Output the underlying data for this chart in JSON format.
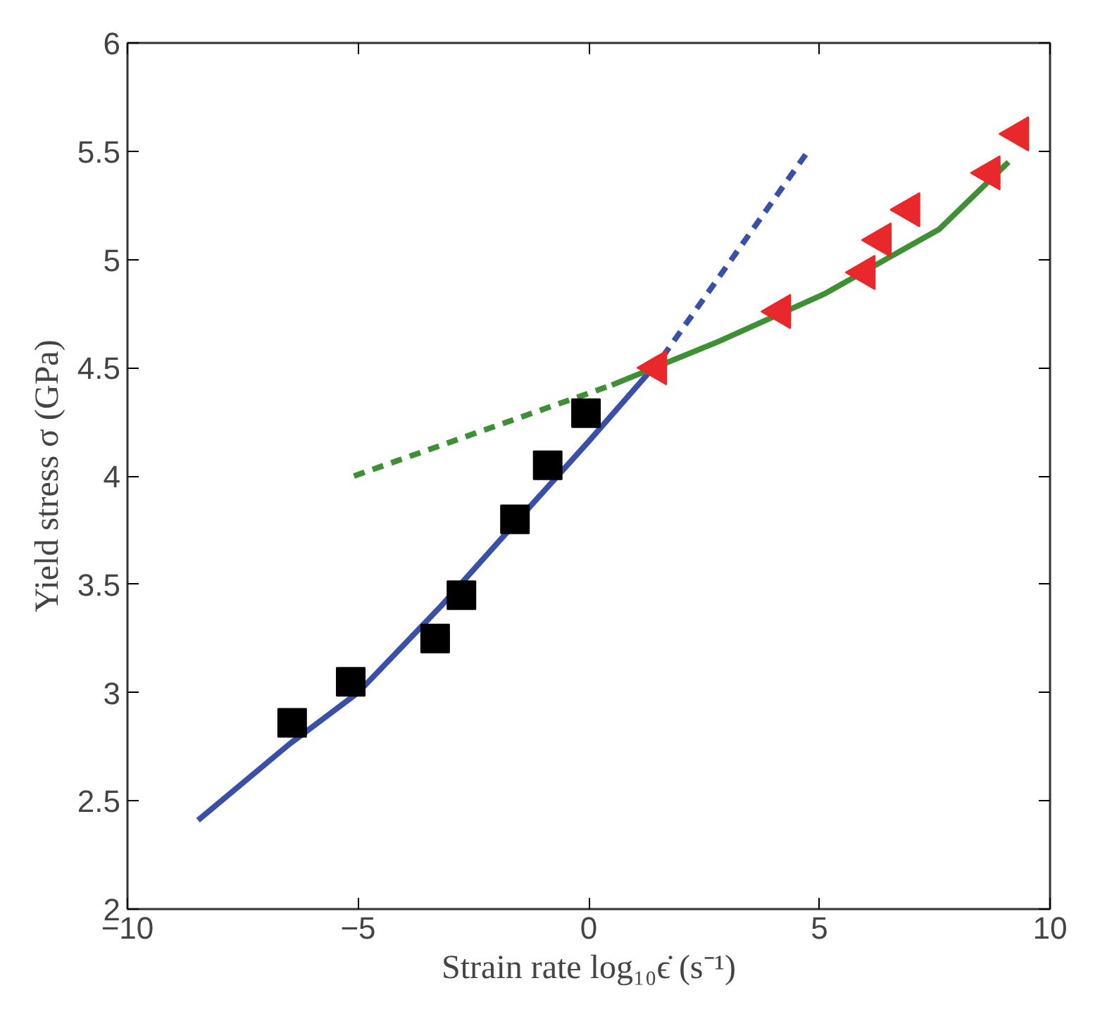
{
  "chart_data": {
    "type": "scatter",
    "xlabel": "Strain rate log₁₀ϵ̇ (s⁻¹)",
    "ylabel": "Yield stress σ (GPa)",
    "xlim": [
      -10,
      10
    ],
    "ylim": [
      2,
      6
    ],
    "xticks": [
      -10,
      -5,
      0,
      5,
      10
    ],
    "yticks": [
      2,
      2.5,
      3,
      3.5,
      4,
      4.5,
      5,
      5.5,
      6
    ],
    "grid": false,
    "series": [
      {
        "type": "line",
        "color": "#3a4fa6",
        "line_style": "solid",
        "marker": "none",
        "x": [
          -8.47,
          -6.5,
          -5,
          -3.2,
          -1.1,
          0,
          1.6
        ],
        "values": [
          2.41,
          2.76,
          3.0,
          3.4,
          3.9,
          4.16,
          4.55
        ]
      },
      {
        "type": "line",
        "color": "#3a4fa6",
        "line_style": "dashed",
        "marker": "none",
        "x": [
          1.6,
          4.72
        ],
        "values": [
          4.55,
          5.49
        ]
      },
      {
        "type": "line",
        "color": "#3f8f35",
        "line_style": "dashed",
        "marker": "none",
        "x": [
          -5.09,
          0.5
        ],
        "values": [
          4.0,
          4.42
        ]
      },
      {
        "type": "line",
        "color": "#3f8f35",
        "line_style": "solid",
        "marker": "none",
        "x": [
          0.5,
          2.8,
          5.1,
          7.6,
          9.1
        ],
        "values": [
          4.42,
          4.62,
          4.84,
          5.14,
          5.45
        ]
      },
      {
        "color": "#000000",
        "marker": "square",
        "x": [
          -6.43,
          -5.16,
          -3.33,
          -2.76,
          -1.6,
          -0.89,
          -0.06
        ],
        "values": [
          2.86,
          3.05,
          3.25,
          3.45,
          3.8,
          4.05,
          4.29
        ]
      },
      {
        "color": "#e8282a",
        "marker": "triangle",
        "x": [
          1.47,
          4.16,
          5.99,
          6.34,
          6.96,
          8.7,
          9.32
        ],
        "values": [
          4.5,
          4.76,
          4.94,
          5.09,
          5.23,
          5.4,
          5.58
        ]
      }
    ]
  }
}
